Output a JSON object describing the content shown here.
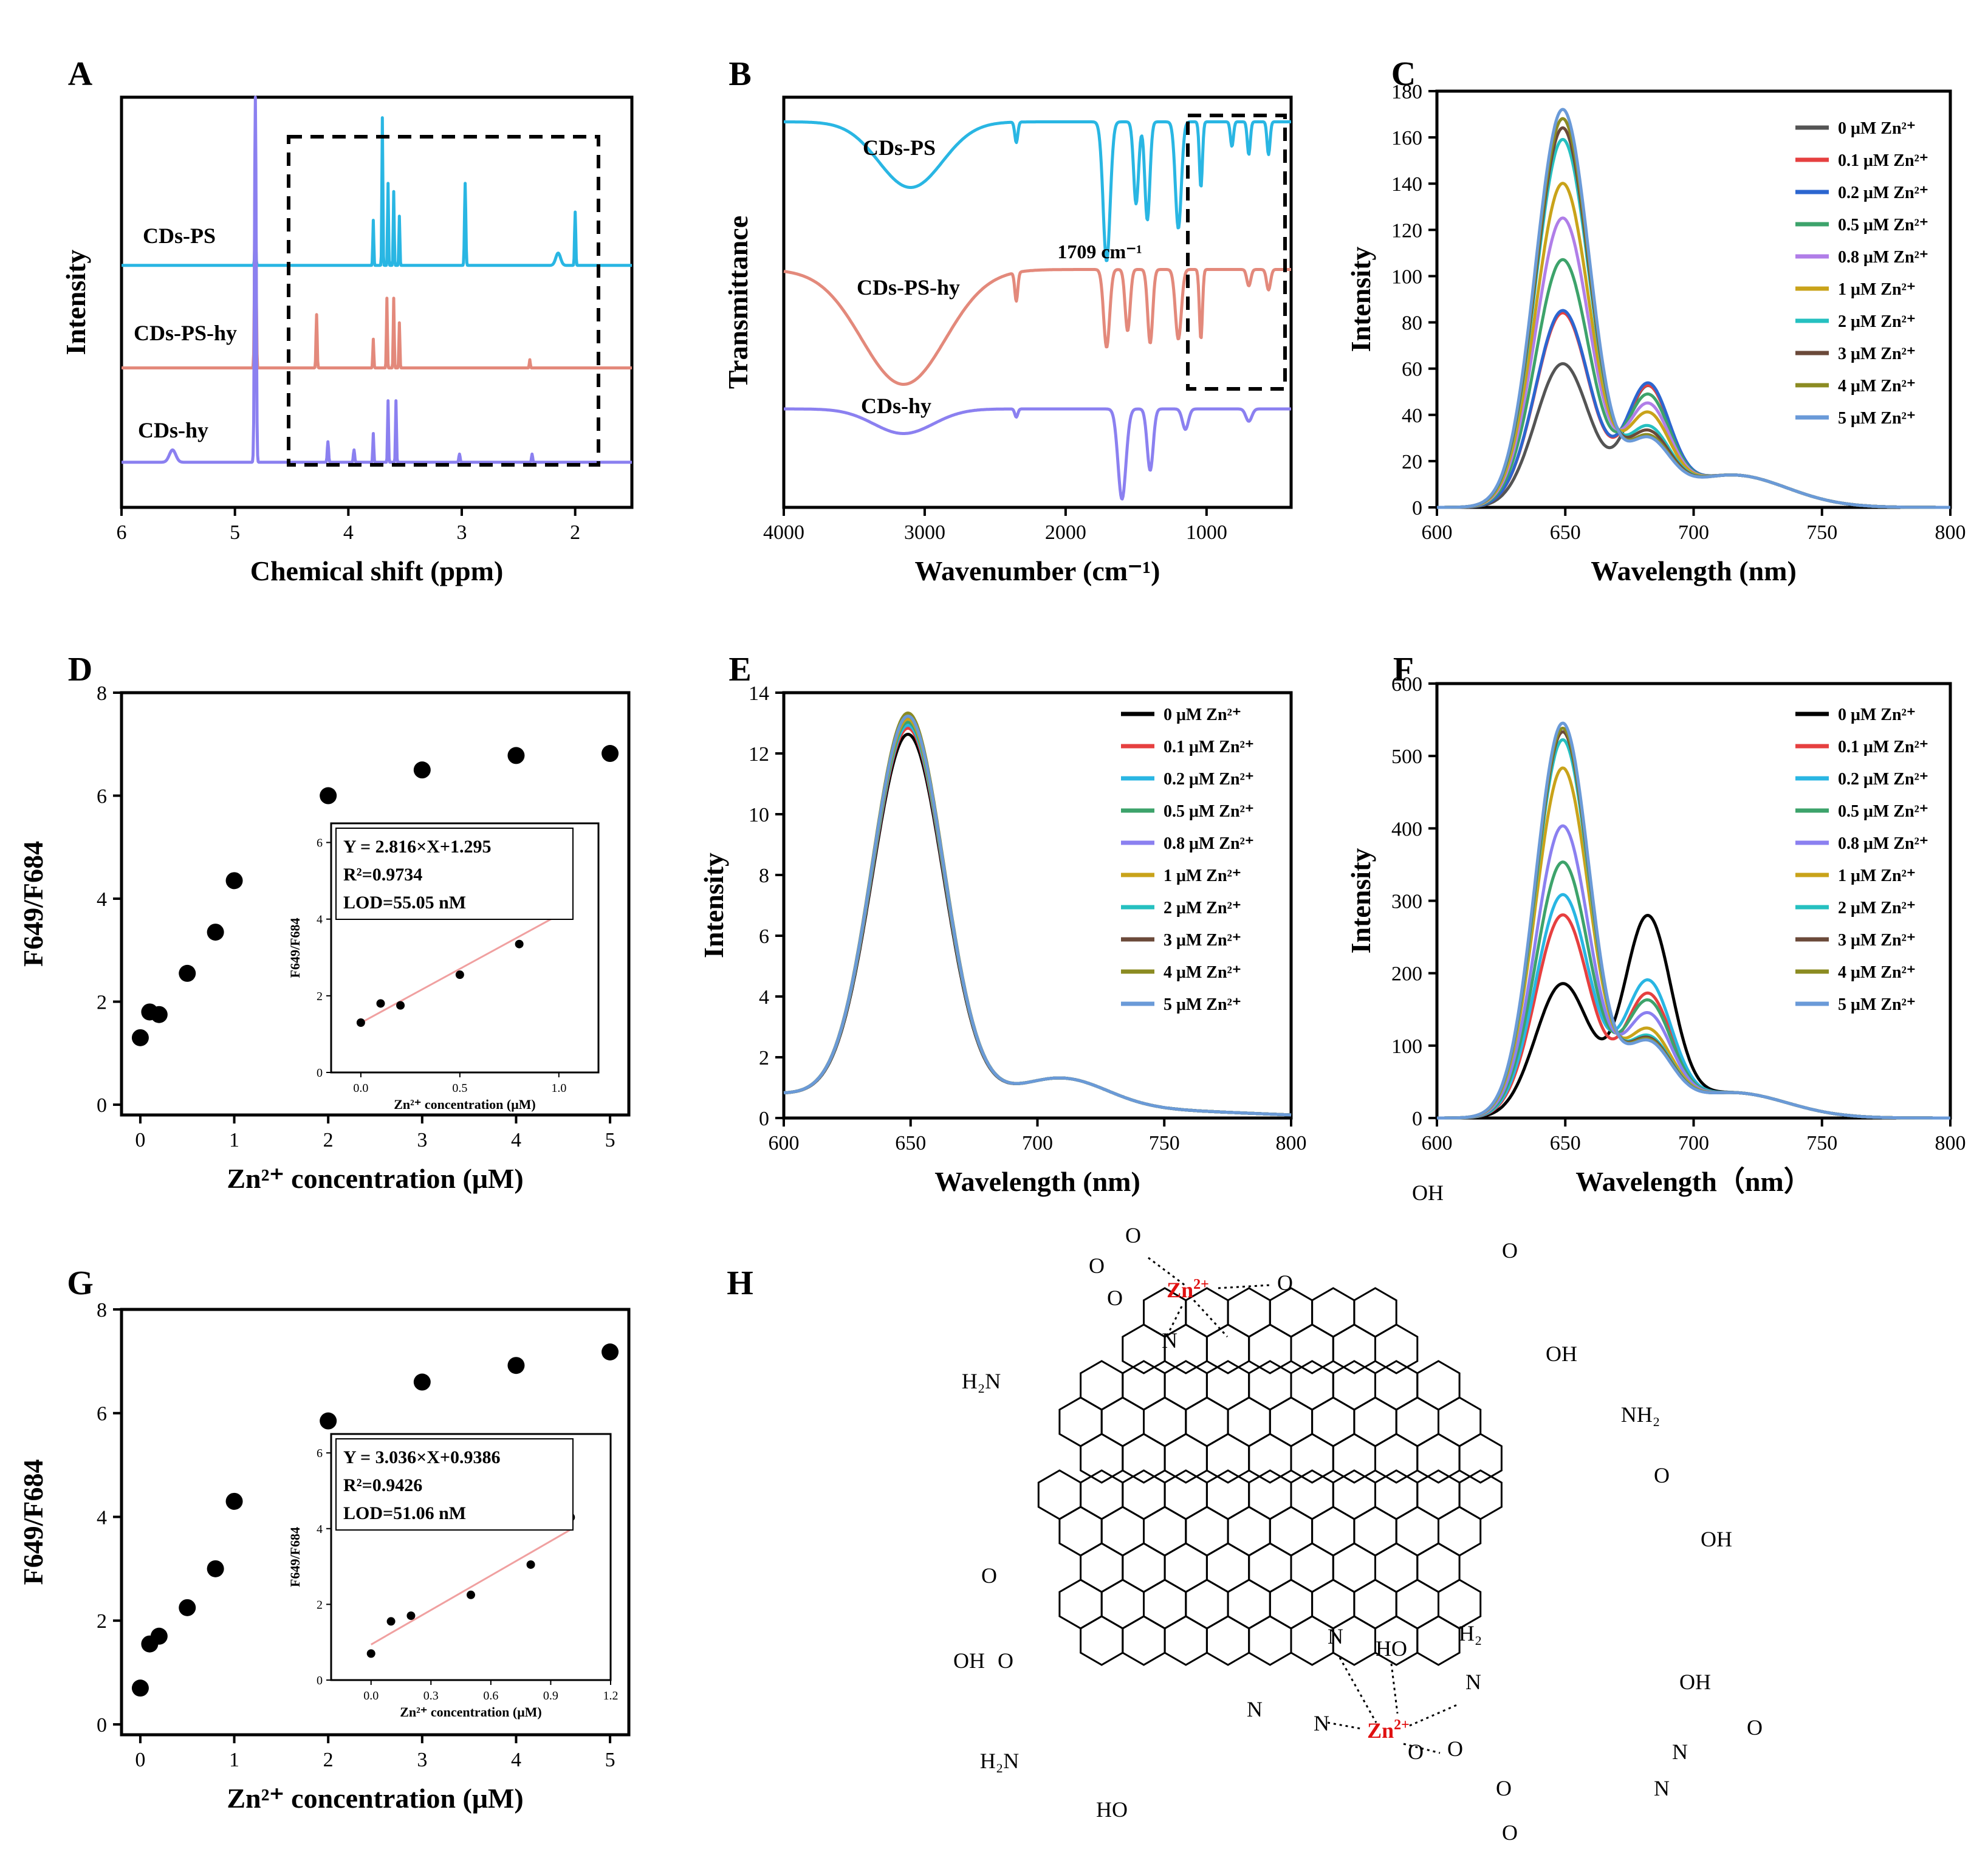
{
  "chart_data": [
    {
      "panel": "A",
      "type": "line",
      "xlabel": "Chemical shift (ppm)",
      "ylabel": "Intensity",
      "xlim": [
        6,
        1.5
      ],
      "xticks": [
        6,
        5,
        4,
        3,
        2
      ],
      "series": [
        {
          "name": "CDs-PS",
          "color": "#29b6e3",
          "baseline": 0.59,
          "peaks": [
            [
              4.82,
              0.08,
              0.007
            ],
            [
              3.78,
              0.11,
              0.006
            ],
            [
              3.7,
              0.36,
              0.006
            ],
            [
              3.65,
              0.2,
              0.006
            ],
            [
              3.6,
              0.18,
              0.006
            ],
            [
              3.55,
              0.12,
              0.006
            ],
            [
              2.97,
              0.2,
              0.008
            ],
            [
              2.15,
              0.03,
              0.03
            ],
            [
              2.0,
              0.13,
              0.007
            ]
          ]
        },
        {
          "name": "CDs-PS-hy",
          "color": "#e3897b",
          "baseline": 0.34,
          "peaks": [
            [
              4.82,
              0.55,
              0.009
            ],
            [
              4.28,
              0.13,
              0.007
            ],
            [
              3.78,
              0.07,
              0.006
            ],
            [
              3.66,
              0.17,
              0.006
            ],
            [
              3.6,
              0.17,
              0.006
            ],
            [
              3.55,
              0.11,
              0.006
            ],
            [
              2.4,
              0.02,
              0.006
            ]
          ]
        },
        {
          "name": "CDs-hy",
          "color": "#8b80f0",
          "baseline": 0.11,
          "peaks": [
            [
              5.55,
              0.03,
              0.04
            ],
            [
              4.82,
              0.92,
              0.01
            ],
            [
              4.18,
              0.05,
              0.008
            ],
            [
              3.95,
              0.03,
              0.008
            ],
            [
              3.78,
              0.07,
              0.006
            ],
            [
              3.65,
              0.15,
              0.006
            ],
            [
              3.58,
              0.15,
              0.006
            ],
            [
              3.02,
              0.02,
              0.008
            ],
            [
              2.38,
              0.02,
              0.007
            ]
          ]
        }
      ]
    },
    {
      "panel": "B",
      "type": "line",
      "xlabel": "Wavenumber (cm⁻¹)",
      "ylabel": "Transmittance",
      "xlim": [
        4000,
        400
      ],
      "xticks": [
        4000,
        3000,
        2000,
        1000
      ],
      "annotation": "1709 cm⁻¹",
      "series": [
        {
          "name": "CDs-PS",
          "color": "#29b6e3",
          "baseline": 0.94,
          "bands": [
            [
              3100,
              0.16,
              320
            ],
            [
              2350,
              0.05,
              15
            ],
            [
              1709,
              0.34,
              35
            ],
            [
              1500,
              0.2,
              25
            ],
            [
              1420,
              0.24,
              25
            ],
            [
              1200,
              0.26,
              30
            ],
            [
              1040,
              0.16,
              15
            ],
            [
              820,
              0.06,
              15
            ],
            [
              700,
              0.08,
              15
            ],
            [
              560,
              0.08,
              15
            ]
          ]
        },
        {
          "name": "CDs-PS-hy",
          "color": "#e3897b",
          "baseline": 0.58,
          "bands": [
            [
              3150,
              0.28,
              420
            ],
            [
              2350,
              0.07,
              15
            ],
            [
              1709,
              0.19,
              30
            ],
            [
              1560,
              0.15,
              25
            ],
            [
              1400,
              0.18,
              25
            ],
            [
              1200,
              0.17,
              30
            ],
            [
              1040,
              0.17,
              15
            ],
            [
              700,
              0.04,
              20
            ],
            [
              560,
              0.05,
              20
            ]
          ]
        },
        {
          "name": "CDs-hy",
          "color": "#8b80f0",
          "baseline": 0.24,
          "bands": [
            [
              3150,
              0.06,
              300
            ],
            [
              2350,
              0.02,
              15
            ],
            [
              1600,
              0.22,
              40
            ],
            [
              1400,
              0.15,
              30
            ],
            [
              1150,
              0.05,
              30
            ],
            [
              700,
              0.03,
              30
            ]
          ]
        }
      ]
    },
    {
      "panel": "C",
      "type": "line",
      "xlabel": "Wavelength (nm)",
      "ylabel": "Intensity",
      "xlim": [
        600,
        800
      ],
      "ylim": [
        0,
        180
      ],
      "xticks": [
        600,
        650,
        700,
        750,
        800
      ],
      "yticks": [
        0,
        20,
        40,
        60,
        80,
        100,
        120,
        140,
        160,
        180
      ],
      "series": [
        {
          "name": "0 μM Zn²⁺",
          "color": "#545454",
          "p1": 62,
          "p2": 48
        },
        {
          "name": "0.1 μM Zn²⁺",
          "color": "#e64040",
          "p1": 84,
          "p2": 48
        },
        {
          "name": "0.2 μM Zn²⁺",
          "color": "#2c66d0",
          "p1": 85,
          "p2": 49
        },
        {
          "name": "0.5 μM Zn²⁺",
          "color": "#3da36b",
          "p1": 107,
          "p2": 44
        },
        {
          "name": "0.8 μM Zn²⁺",
          "color": "#b07ee8",
          "p1": 125,
          "p2": 40
        },
        {
          "name": "1 μM Zn²⁺",
          "color": "#c9a31a",
          "p1": 140,
          "p2": 36
        },
        {
          "name": "2 μM Zn²⁺",
          "color": "#26c0c0",
          "p1": 159,
          "p2": 30
        },
        {
          "name": "3 μM Zn²⁺",
          "color": "#6b4a3a",
          "p1": 164,
          "p2": 28
        },
        {
          "name": "4 μM Zn²⁺",
          "color": "#8b8b22",
          "p1": 168,
          "p2": 26
        },
        {
          "name": "5 μM Zn²⁺",
          "color": "#6a9ad8",
          "p1": 172,
          "p2": 25
        }
      ]
    },
    {
      "panel": "D",
      "type": "scatter",
      "xlabel": "Zn²⁺ concentration (μM)",
      "ylabel": "F649/F684",
      "xlim": [
        -0.2,
        5.2
      ],
      "ylim": [
        -0.2,
        8
      ],
      "xticks": [
        0,
        1,
        2,
        3,
        4,
        5
      ],
      "yticks": [
        0,
        2,
        4,
        6,
        8
      ],
      "x": [
        0,
        0.1,
        0.2,
        0.5,
        0.8,
        1,
        2,
        3,
        4,
        5
      ],
      "y": [
        1.3,
        1.8,
        1.75,
        2.55,
        3.35,
        4.35,
        6.0,
        6.5,
        6.78,
        6.82
      ],
      "inset": {
        "xlabel": "Zn²⁺ concentration (μM)",
        "ylabel": "F649/F684",
        "xlim": [
          -0.15,
          1.2
        ],
        "ylim": [
          0,
          6.5
        ],
        "xticks": [
          0.0,
          0.5,
          1.0
        ],
        "yticks": [
          0,
          2,
          4,
          6
        ],
        "x": [
          0,
          0.1,
          0.2,
          0.5,
          0.8,
          1.0
        ],
        "y": [
          1.3,
          1.8,
          1.75,
          2.55,
          3.35,
          4.35
        ],
        "fit": {
          "slope": 2.816,
          "intercept": 1.295
        },
        "equation": "Y = 2.816×X+1.295",
        "r2": "R²=0.9734",
        "lod": "LOD=55.05 nM"
      }
    },
    {
      "panel": "E",
      "type": "line",
      "xlabel": "Wavelength (nm)",
      "ylabel": "Intensity",
      "xlim": [
        600,
        800
      ],
      "ylim": [
        0,
        14
      ],
      "xticks": [
        600,
        650,
        700,
        750,
        800
      ],
      "yticks": [
        0,
        2,
        4,
        6,
        8,
        10,
        12,
        14
      ],
      "series": [
        {
          "name": "0 μM Zn²⁺",
          "color": "#000000",
          "peak": 12.8
        },
        {
          "name": "0.1 μM Zn²⁺",
          "color": "#e64040",
          "peak": 13.0
        },
        {
          "name": "0.2 μM Zn²⁺",
          "color": "#29b6e3",
          "peak": 13.1
        },
        {
          "name": "0.5 μM Zn²⁺",
          "color": "#3da36b",
          "peak": 13.2
        },
        {
          "name": "0.8 μM Zn²⁺",
          "color": "#8b80f0",
          "peak": 13.3
        },
        {
          "name": "1 μM Zn²⁺",
          "color": "#c9a31a",
          "peak": 13.3
        },
        {
          "name": "2 μM Zn²⁺",
          "color": "#26c0c0",
          "peak": 13.4
        },
        {
          "name": "3 μM Zn²⁺",
          "color": "#6b4a3a",
          "peak": 13.4
        },
        {
          "name": "4 μM Zn²⁺",
          "color": "#8b8b22",
          "peak": 13.5
        },
        {
          "name": "5 μM Zn²⁺",
          "color": "#6a9ad8",
          "peak": 13.4
        }
      ]
    },
    {
      "panel": "F",
      "type": "line",
      "xlabel": "Wavelength（nm）",
      "ylabel": "Intensity",
      "xlim": [
        600,
        800
      ],
      "ylim": [
        0,
        600
      ],
      "xticks": [
        600,
        650,
        700,
        750,
        800
      ],
      "yticks": [
        0,
        100,
        200,
        300,
        400,
        500,
        600
      ],
      "series": [
        {
          "name": "0 μM Zn²⁺",
          "color": "#000000",
          "p1": 185,
          "p2": 268
        },
        {
          "name": "0.1 μM Zn²⁺",
          "color": "#e64040",
          "p1": 280,
          "p2": 160
        },
        {
          "name": "0.2 μM Zn²⁺",
          "color": "#29b6e3",
          "p1": 308,
          "p2": 178
        },
        {
          "name": "0.5 μM Zn²⁺",
          "color": "#3da36b",
          "p1": 353,
          "p2": 150
        },
        {
          "name": "0.8 μM Zn²⁺",
          "color": "#8b80f0",
          "p1": 403,
          "p2": 132
        },
        {
          "name": "1 μM Zn²⁺",
          "color": "#c9a31a",
          "p1": 483,
          "p2": 110
        },
        {
          "name": "2 μM Zn²⁺",
          "color": "#26c0c0",
          "p1": 522,
          "p2": 100
        },
        {
          "name": "3 μM Zn²⁺",
          "color": "#6b4a3a",
          "p1": 533,
          "p2": 97
        },
        {
          "name": "4 μM Zn²⁺",
          "color": "#8b8b22",
          "p1": 538,
          "p2": 95
        },
        {
          "name": "5 μM Zn²⁺",
          "color": "#6a9ad8",
          "p1": 545,
          "p2": 93
        }
      ]
    },
    {
      "panel": "G",
      "type": "scatter",
      "xlabel": "Zn²⁺ concentration (μM)",
      "ylabel": "F649/F684",
      "xlim": [
        -0.2,
        5.2
      ],
      "ylim": [
        -0.2,
        8
      ],
      "xticks": [
        0,
        1,
        2,
        3,
        4,
        5
      ],
      "yticks": [
        0,
        2,
        4,
        6,
        8
      ],
      "x": [
        0,
        0.1,
        0.2,
        0.5,
        0.8,
        1,
        2,
        3,
        4,
        5
      ],
      "y": [
        0.7,
        1.55,
        1.7,
        2.25,
        3.0,
        4.3,
        5.85,
        6.6,
        6.92,
        7.18
      ],
      "inset": {
        "xlabel": "Zn²⁺ concentration (μM)",
        "ylabel": "F649/F684",
        "xlim": [
          -0.2,
          1.2
        ],
        "ylim": [
          0,
          6.5
        ],
        "xticks": [
          0.0,
          0.3,
          0.6,
          0.9,
          1.2
        ],
        "yticks": [
          0,
          2,
          4,
          6
        ],
        "x": [
          0,
          0.1,
          0.2,
          0.5,
          0.8,
          1.0
        ],
        "y": [
          0.7,
          1.55,
          1.7,
          2.25,
          3.05,
          4.3
        ],
        "fit": {
          "slope": 3.036,
          "intercept": 0.9386
        },
        "equation": "Y = 3.036×X+0.9386",
        "r2": "R²=0.9426",
        "lod": "LOD=51.06 nM"
      }
    }
  ],
  "panel_labels": [
    "A",
    "B",
    "C",
    "D",
    "E",
    "F",
    "G",
    "H"
  ],
  "scheme_H": {
    "ion": "Zn2+",
    "labels": [
      "O",
      "O",
      "O",
      "N",
      "O",
      "OH",
      "O",
      "OH",
      "NH2",
      "O",
      "OH",
      "H2N",
      "O",
      "OH",
      "O",
      "N",
      "HO",
      "H2",
      "N",
      "OH",
      "O",
      "H2N",
      "N",
      "N",
      "HO",
      "O",
      "O",
      "N",
      "N",
      "O",
      "O"
    ]
  }
}
